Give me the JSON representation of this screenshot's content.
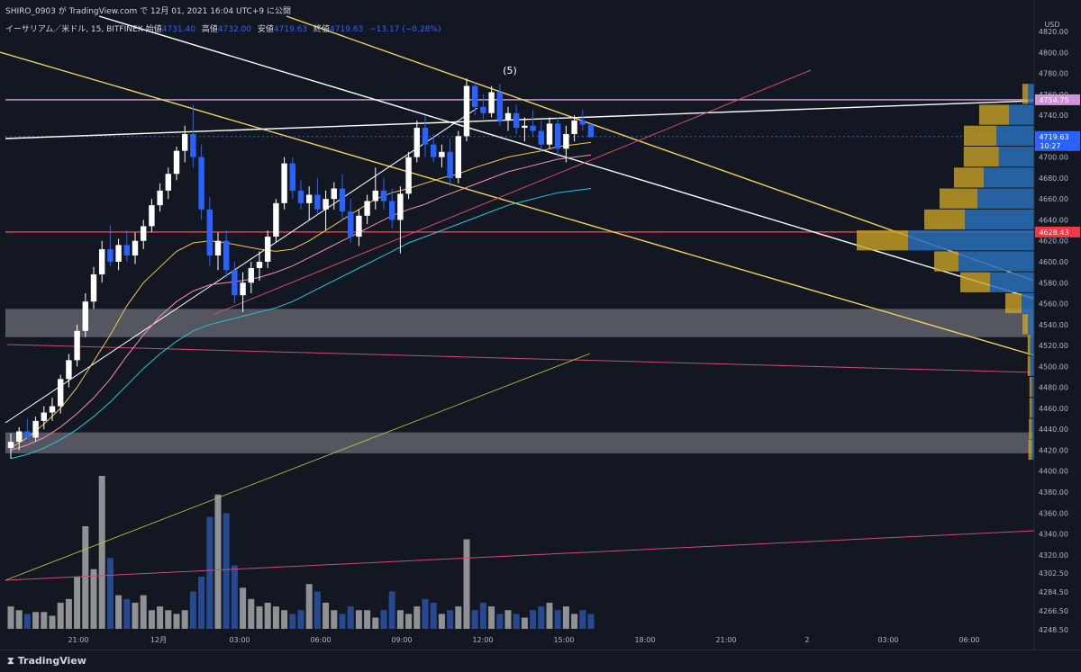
{
  "header": {
    "credit": "SHIRO_0903 が TradingView.com で 12月 01, 2021 16:04 UTC+9 に公開",
    "symbol": "イーサリアム／米ドル, 15, BITFINEX",
    "open_label": "始値",
    "open": "4731.40",
    "high_label": "高値",
    "high": "4732.00",
    "low_label": "安値",
    "low": "4719.63",
    "close_label": "終値",
    "close": "4719.63",
    "change": "−13.17 (−0.28%)"
  },
  "footer": {
    "brand": "TradingView",
    "brand_icon": "tradingview-logo-icon"
  },
  "chart_data": {
    "type": "candlestick",
    "symbol": "ETH/USD",
    "exchange": "BITFINEX",
    "interval": "15",
    "currency": "USD",
    "ylim": [
      4240,
      4830
    ],
    "y_ticks": [
      4820,
      4800,
      4780,
      4760,
      4740,
      4720,
      4700,
      4680,
      4660,
      4640,
      4620,
      4600,
      4580,
      4560,
      4540,
      4520,
      4500,
      4480,
      4460,
      4440,
      4420,
      4400,
      4380,
      4360,
      4340,
      4320,
      4302.5,
      4284.5,
      4266.5,
      4248.5
    ],
    "x_ticks": [
      "21:00",
      "12月",
      "03:00",
      "06:00",
      "09:00",
      "12:00",
      "15:00",
      "18:00",
      "21:00",
      "2",
      "03:00",
      "06:00"
    ],
    "price_labels": [
      {
        "label": "4754.75",
        "value": 4754.75,
        "color": "#ce93d8"
      },
      {
        "label": "4719.63",
        "sub": "10:27",
        "value": 4719.63,
        "color": "#2962ff"
      },
      {
        "label": "4628.43",
        "value": 4628.43,
        "color": "#f23645"
      }
    ],
    "annotation": "(5)",
    "zones": [
      [
        4528,
        4555
      ],
      [
        4417,
        4437
      ]
    ],
    "candles": [
      [
        4422,
        4436,
        4412,
        4428
      ],
      [
        4428,
        4442,
        4420,
        4438
      ],
      [
        4438,
        4450,
        4430,
        4432
      ],
      [
        4432,
        4452,
        4428,
        4448
      ],
      [
        4448,
        4462,
        4440,
        4456
      ],
      [
        4456,
        4470,
        4448,
        4462
      ],
      [
        4462,
        4492,
        4455,
        4488
      ],
      [
        4488,
        4512,
        4480,
        4506
      ],
      [
        4506,
        4540,
        4500,
        4534
      ],
      [
        4534,
        4570,
        4528,
        4562
      ],
      [
        4562,
        4595,
        4555,
        4588
      ],
      [
        4588,
        4620,
        4580,
        4612
      ],
      [
        4612,
        4635,
        4596,
        4600
      ],
      [
        4600,
        4622,
        4592,
        4616
      ],
      [
        4616,
        4630,
        4600,
        4606
      ],
      [
        4606,
        4628,
        4598,
        4620
      ],
      [
        4620,
        4640,
        4612,
        4634
      ],
      [
        4634,
        4660,
        4628,
        4654
      ],
      [
        4654,
        4675,
        4648,
        4668
      ],
      [
        4668,
        4690,
        4660,
        4684
      ],
      [
        4684,
        4710,
        4678,
        4706
      ],
      [
        4706,
        4730,
        4695,
        4722
      ],
      [
        4722,
        4750,
        4690,
        4700
      ],
      [
        4700,
        4712,
        4640,
        4650
      ],
      [
        4650,
        4662,
        4596,
        4606
      ],
      [
        4606,
        4628,
        4592,
        4620
      ],
      [
        4620,
        4630,
        4585,
        4592
      ],
      [
        4592,
        4600,
        4560,
        4568
      ],
      [
        4568,
        4590,
        4552,
        4580
      ],
      [
        4580,
        4600,
        4570,
        4594
      ],
      [
        4594,
        4610,
        4582,
        4600
      ],
      [
        4600,
        4630,
        4594,
        4624
      ],
      [
        4624,
        4660,
        4618,
        4656
      ],
      [
        4656,
        4700,
        4650,
        4694
      ],
      [
        4694,
        4700,
        4660,
        4668
      ],
      [
        4668,
        4678,
        4650,
        4656
      ],
      [
        4656,
        4672,
        4640,
        4664
      ],
      [
        4664,
        4680,
        4645,
        4650
      ],
      [
        4650,
        4668,
        4630,
        4660
      ],
      [
        4660,
        4676,
        4650,
        4670
      ],
      [
        4670,
        4684,
        4640,
        4648
      ],
      [
        4648,
        4660,
        4618,
        4624
      ],
      [
        4624,
        4650,
        4615,
        4644
      ],
      [
        4644,
        4664,
        4636,
        4658
      ],
      [
        4658,
        4690,
        4650,
        4668
      ],
      [
        4668,
        4680,
        4650,
        4658
      ],
      [
        4658,
        4670,
        4632,
        4640
      ],
      [
        4640,
        4672,
        4608,
        4665
      ],
      [
        4665,
        4705,
        4660,
        4700
      ],
      [
        4700,
        4735,
        4695,
        4728
      ],
      [
        4728,
        4740,
        4700,
        4712
      ],
      [
        4712,
        4722,
        4695,
        4700
      ],
      [
        4700,
        4712,
        4690,
        4705
      ],
      [
        4705,
        4718,
        4672,
        4680
      ],
      [
        4680,
        4725,
        4675,
        4720
      ],
      [
        4720,
        4775,
        4715,
        4768
      ],
      [
        4768,
        4772,
        4740,
        4748
      ],
      [
        4748,
        4760,
        4736,
        4742
      ],
      [
        4742,
        4768,
        4738,
        4762
      ],
      [
        4762,
        4770,
        4730,
        4735
      ],
      [
        4735,
        4748,
        4725,
        4742
      ],
      [
        4742,
        4750,
        4722,
        4728
      ],
      [
        4728,
        4738,
        4715,
        4730
      ],
      [
        4730,
        4745,
        4720,
        4725
      ],
      [
        4725,
        4735,
        4705,
        4712
      ],
      [
        4712,
        4738,
        4708,
        4732
      ],
      [
        4732,
        4738,
        4700,
        4708
      ],
      [
        4708,
        4730,
        4695,
        4722
      ],
      [
        4722,
        4740,
        4715,
        4735
      ],
      [
        4735,
        4745,
        4725,
        4731
      ],
      [
        4731,
        4732,
        4719,
        4719
      ]
    ],
    "volume": [
      12,
      10,
      8,
      9,
      9,
      7,
      14,
      16,
      28,
      55,
      32,
      82,
      38,
      18,
      16,
      14,
      18,
      10,
      12,
      10,
      8,
      10,
      20,
      28,
      60,
      72,
      62,
      34,
      22,
      16,
      12,
      14,
      12,
      10,
      8,
      10,
      24,
      20,
      14,
      10,
      8,
      12,
      10,
      10,
      6,
      10,
      20,
      10,
      8,
      12,
      16,
      14,
      8,
      10,
      12,
      48,
      10,
      14,
      12,
      8,
      10,
      8,
      6,
      10,
      12,
      14,
      10,
      12,
      8,
      10,
      8
    ],
    "moving_averages": [
      {
        "color": "#f0c64a",
        "values": [
          4422,
          4432,
          4445,
          4460,
          4480,
          4505,
          4530,
          4558,
          4580,
          4595,
          4610,
          4618,
          4620,
          4618,
          4615,
          4612,
          4610,
          4612,
          4620,
          4630,
          4640,
          4650,
          4660,
          4666,
          4670,
          4675,
          4680,
          4684,
          4690,
          4695,
          4700,
          4703,
          4706,
          4710,
          4712,
          4714
        ]
      },
      {
        "color": "#f48fb1",
        "values": [
          4420,
          4425,
          4432,
          4442,
          4455,
          4470,
          4488,
          4510,
          4530,
          4548,
          4562,
          4572,
          4578,
          4580,
          4582,
          4585,
          4590,
          4596,
          4604,
          4612,
          4620,
          4628,
          4636,
          4644,
          4650,
          4655,
          4662,
          4668,
          4674,
          4680,
          4686,
          4690,
          4694,
          4698,
          4700,
          4702
        ]
      },
      {
        "color": "#26c6da",
        "values": [
          4412,
          4416,
          4422,
          4430,
          4440,
          4452,
          4466,
          4482,
          4498,
          4512,
          4524,
          4534,
          4540,
          4544,
          4548,
          4552,
          4556,
          4562,
          4570,
          4578,
          4586,
          4594,
          4602,
          4610,
          4618,
          4624,
          4630,
          4636,
          4642,
          4648,
          4654,
          4658,
          4662,
          4666,
          4668,
          4670
        ]
      }
    ],
    "volume_profile": [
      {
        "price": 4760,
        "up": 0.1,
        "down": 0.05
      },
      {
        "price": 4740,
        "up": 0.55,
        "down": 0.2
      },
      {
        "price": 4720,
        "up": 0.6,
        "down": 0.3
      },
      {
        "price": 4700,
        "up": 0.65,
        "down": 0.28
      },
      {
        "price": 4680,
        "up": 0.55,
        "down": 0.4
      },
      {
        "price": 4660,
        "up": 0.7,
        "down": 0.45
      },
      {
        "price": 4640,
        "up": 0.75,
        "down": 0.55
      },
      {
        "price": 4620,
        "up": 0.95,
        "down": 1.0
      },
      {
        "price": 4600,
        "up": 0.45,
        "down": 0.6
      },
      {
        "price": 4580,
        "up": 0.55,
        "down": 0.35
      },
      {
        "price": 4560,
        "up": 0.3,
        "down": 0.1
      },
      {
        "price": 4540,
        "up": 0.1,
        "down": 0.05
      },
      {
        "price": 4520,
        "up": 0.05,
        "down": 0.03
      },
      {
        "price": 4500,
        "up": 0.05,
        "down": 0.03
      },
      {
        "price": 4480,
        "up": 0.04,
        "down": 0.02
      },
      {
        "price": 4460,
        "up": 0.04,
        "down": 0.02
      },
      {
        "price": 4440,
        "up": 0.05,
        "down": 0.02
      },
      {
        "price": 4420,
        "up": 0.06,
        "down": 0.02
      }
    ]
  }
}
